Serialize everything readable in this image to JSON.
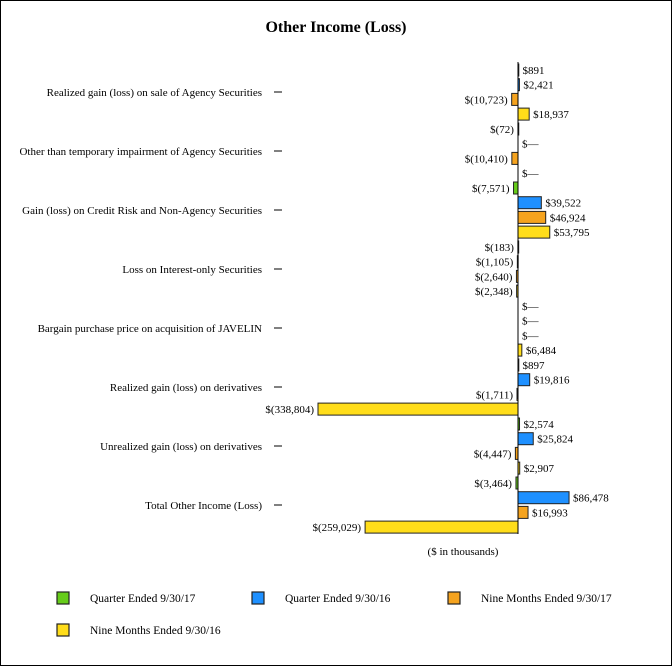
{
  "chart_data": {
    "type": "bar",
    "orientation": "horizontal",
    "title": "Other Income (Loss)",
    "xlabel": "($ in thousands)",
    "ylabel": "",
    "grid": false,
    "legend_position": "bottom",
    "categories": [
      "Realized gain (loss) on sale of Agency Securities",
      "Other than temporary impairment of Agency Securities",
      "Gain (loss) on Credit Risk and Non-Agency Securities",
      "Loss on Interest-only Securities",
      "Bargain purchase price on acquisition of JAVELIN",
      "Realized gain (loss) on derivatives",
      "Unrealized gain (loss) on derivatives",
      "Total Other Income (Loss)"
    ],
    "series": [
      {
        "name": "Quarter Ended 9/30/17",
        "color": "#66cc1a",
        "values": [
          891,
          -72,
          -7571,
          -183,
          0,
          897,
          2574,
          -3464
        ]
      },
      {
        "name": "Quarter Ended 9/30/16",
        "color": "#1e90ff",
        "values": [
          2421,
          0,
          39522,
          -1105,
          0,
          19816,
          25824,
          86478
        ]
      },
      {
        "name": "Nine Months Ended 9/30/17",
        "color": "#f5a31e",
        "values": [
          -10723,
          -10410,
          46924,
          -2640,
          0,
          -1711,
          -4447,
          16993
        ]
      },
      {
        "name": "Nine Months Ended 9/30/16",
        "color": "#ffdd1a",
        "values": [
          18937,
          0,
          53795,
          -2348,
          6484,
          -338804,
          2907,
          -259029
        ]
      }
    ]
  }
}
